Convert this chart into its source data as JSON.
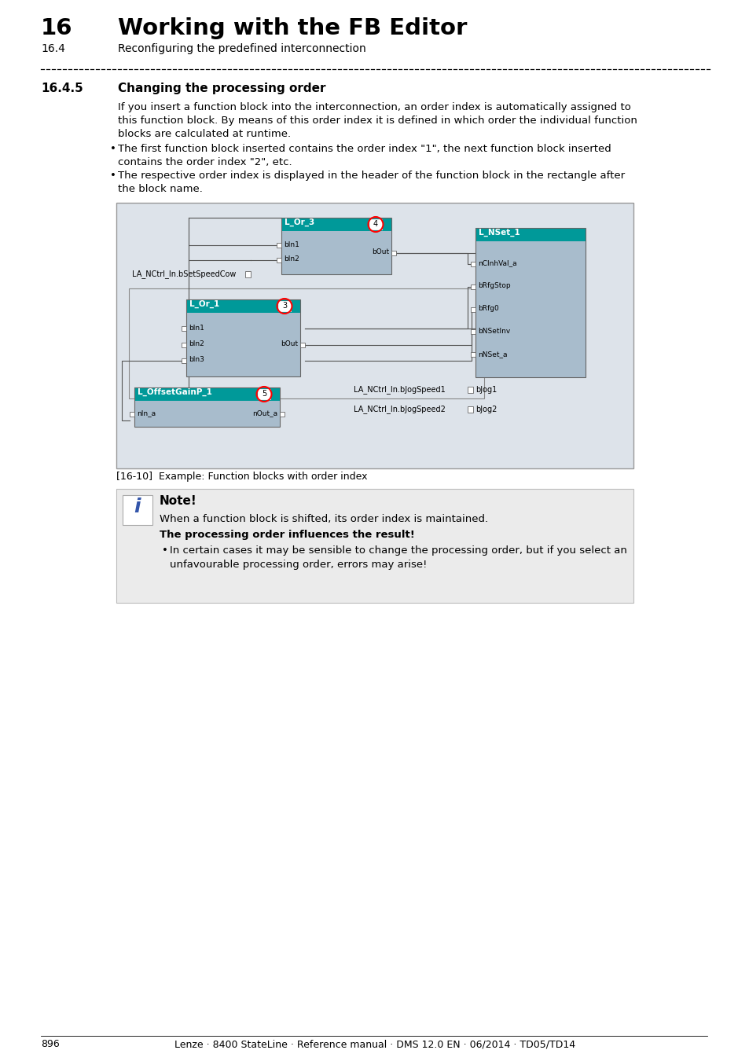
{
  "title_number": "16",
  "title_text": "Working with the FB Editor",
  "subtitle_number": "16.4",
  "subtitle_text": "Reconfiguring the predefined interconnection",
  "section_number": "16.4.5",
  "section_title": "Changing the processing order",
  "body_line1": "If you insert a function block into the interconnection, an order index is automatically assigned to",
  "body_line2": "this function block. By means of this order index it is defined in which order the individual function",
  "body_line3": "blocks are calculated at runtime.",
  "bullet1_line1": "The first function block inserted contains the order index \"1\", the next function block inserted",
  "bullet1_line2": "contains the order index \"2\", etc.",
  "bullet2_line1": "The respective order index is displayed in the header of the function block in the rectangle after",
  "bullet2_line2": "the block name.",
  "fig_caption": "[16-10]  Example: Function blocks with order index",
  "note_title": "Note!",
  "note_text1": "When a function block is shifted, its order index is maintained.",
  "note_text2": "The processing order influences the result!",
  "note_bullet1": "In certain cases it may be sensible to change the processing order, but if you select an",
  "note_bullet2": "unfavourable processing order, errors may arise!",
  "page_number": "896",
  "footer_text": "Lenze · 8400 StateLine · Reference manual · DMS 12.0 EN · 06/2014 · TD05/TD14",
  "teal": "#009999",
  "block_bg": "#A8BCCC",
  "note_bg": "#EBEBEB",
  "diag_bg": "#DDE3EA",
  "diag_border": "#999999",
  "wire_color": "#555555",
  "port_sq_color": "#555555"
}
